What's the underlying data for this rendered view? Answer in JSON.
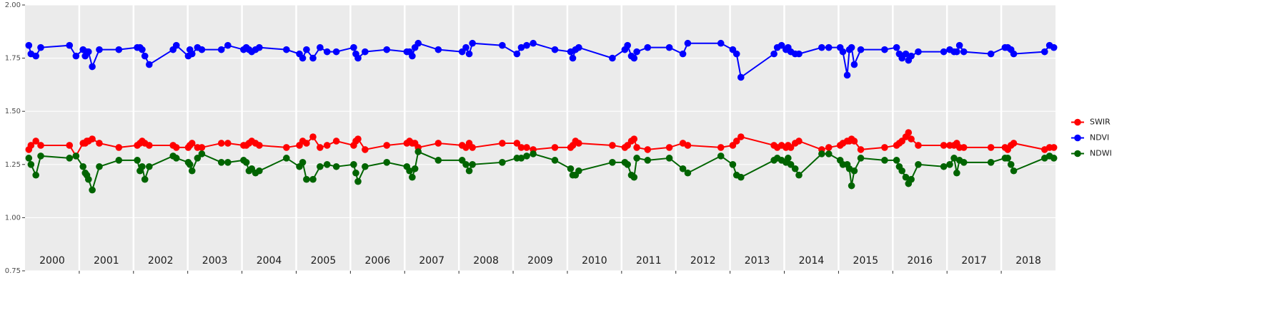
{
  "chart_data": {
    "type": "line",
    "xlim": [
      2000,
      2019
    ],
    "xticks": [
      2001,
      2002,
      2003,
      2004,
      2005,
      2006,
      2007,
      2008,
      2009,
      2010,
      2011,
      2012,
      2013,
      2014,
      2015,
      2016,
      2017,
      2018
    ],
    "year_labels": [
      2000,
      2001,
      2002,
      2003,
      2004,
      2005,
      2006,
      2007,
      2008,
      2009,
      2010,
      2011,
      2012,
      2013,
      2014,
      2015,
      2016,
      2017,
      2018
    ],
    "ylim": [
      0.75,
      2.0
    ],
    "yticks": [
      {
        "value": 0.75,
        "label": "0.75"
      },
      {
        "value": 1.0,
        "label": "1.00"
      },
      {
        "value": 1.25,
        "label": "1.25"
      },
      {
        "value": 1.5,
        "label": "1.50"
      },
      {
        "value": 1.75,
        "label": "1.75"
      },
      {
        "value": 2.0,
        "label": "2.00"
      }
    ],
    "grid": true,
    "legend": "right",
    "x": [
      2000.07,
      2000.11,
      2000.2,
      2000.29,
      2000.82,
      2000.94,
      2001.07,
      2001.11,
      2001.14,
      2001.17,
      2001.24,
      2001.37,
      2001.73,
      2002.07,
      2002.12,
      2002.16,
      2002.21,
      2002.29,
      2002.73,
      2002.79,
      2003.01,
      2003.04,
      2003.08,
      2003.18,
      2003.26,
      2003.62,
      2003.74,
      2004.03,
      2004.08,
      2004.13,
      2004.18,
      2004.25,
      2004.32,
      2004.82,
      2005.06,
      2005.12,
      2005.19,
      2005.31,
      2005.44,
      2005.57,
      2005.74,
      2006.06,
      2006.1,
      2006.14,
      2006.27,
      2006.67,
      2007.04,
      2007.09,
      2007.14,
      2007.19,
      2007.25,
      2007.62,
      2008.06,
      2008.13,
      2008.19,
      2008.25,
      2008.8,
      2009.07,
      2009.15,
      2009.25,
      2009.37,
      2009.77,
      2010.06,
      2010.1,
      2010.15,
      2010.21,
      2010.83,
      2011.06,
      2011.11,
      2011.18,
      2011.23,
      2011.28,
      2011.48,
      2011.88,
      2012.13,
      2012.22,
      2012.83,
      2013.05,
      2013.12,
      2013.2,
      2013.81,
      2013.87,
      2013.95,
      2014.03,
      2014.07,
      2014.12,
      2014.2,
      2014.27,
      2014.69,
      2014.82,
      2015.03,
      2015.08,
      2015.16,
      2015.2,
      2015.24,
      2015.29,
      2015.41,
      2015.85,
      2016.07,
      2016.12,
      2016.17,
      2016.24,
      2016.29,
      2016.34,
      2016.47,
      2016.94,
      2017.05,
      2017.13,
      2017.18,
      2017.23,
      2017.31,
      2017.81,
      2018.07,
      2018.12,
      2018.18,
      2018.23,
      2018.8,
      2018.89,
      2018.97
    ],
    "series": [
      {
        "name": "SWIR",
        "color": "#ff0000",
        "values": [
          1.32,
          1.34,
          1.36,
          1.34,
          1.34,
          1.29,
          1.35,
          1.35,
          1.36,
          1.36,
          1.37,
          1.35,
          1.33,
          1.34,
          1.35,
          1.36,
          1.35,
          1.34,
          1.34,
          1.33,
          1.33,
          1.34,
          1.35,
          1.33,
          1.33,
          1.35,
          1.35,
          1.34,
          1.34,
          1.35,
          1.36,
          1.35,
          1.34,
          1.33,
          1.34,
          1.36,
          1.35,
          1.38,
          1.33,
          1.34,
          1.36,
          1.34,
          1.36,
          1.37,
          1.32,
          1.34,
          1.35,
          1.36,
          1.35,
          1.35,
          1.33,
          1.35,
          1.34,
          1.33,
          1.35,
          1.33,
          1.35,
          1.35,
          1.33,
          1.33,
          1.32,
          1.33,
          1.33,
          1.34,
          1.36,
          1.35,
          1.34,
          1.33,
          1.34,
          1.36,
          1.37,
          1.33,
          1.32,
          1.33,
          1.35,
          1.34,
          1.33,
          1.34,
          1.36,
          1.38,
          1.34,
          1.33,
          1.34,
          1.33,
          1.34,
          1.33,
          1.35,
          1.36,
          1.32,
          1.33,
          1.34,
          1.35,
          1.36,
          1.36,
          1.37,
          1.36,
          1.32,
          1.33,
          1.34,
          1.35,
          1.36,
          1.38,
          1.4,
          1.37,
          1.34,
          1.34,
          1.34,
          1.34,
          1.35,
          1.33,
          1.33,
          1.33,
          1.33,
          1.32,
          1.34,
          1.35,
          1.32,
          1.33,
          1.33
        ]
      },
      {
        "name": "NDVI",
        "color": "#0000ff",
        "values": [
          1.81,
          1.77,
          1.76,
          1.8,
          1.81,
          1.76,
          1.79,
          1.76,
          1.78,
          1.78,
          1.71,
          1.79,
          1.79,
          1.8,
          1.8,
          1.79,
          1.76,
          1.72,
          1.79,
          1.81,
          1.76,
          1.79,
          1.77,
          1.8,
          1.79,
          1.79,
          1.81,
          1.79,
          1.8,
          1.79,
          1.78,
          1.79,
          1.8,
          1.79,
          1.77,
          1.75,
          1.79,
          1.75,
          1.8,
          1.78,
          1.78,
          1.8,
          1.77,
          1.75,
          1.78,
          1.79,
          1.78,
          1.78,
          1.76,
          1.8,
          1.82,
          1.79,
          1.78,
          1.8,
          1.77,
          1.82,
          1.81,
          1.77,
          1.8,
          1.81,
          1.82,
          1.79,
          1.78,
          1.75,
          1.79,
          1.8,
          1.75,
          1.79,
          1.81,
          1.76,
          1.75,
          1.78,
          1.8,
          1.8,
          1.77,
          1.82,
          1.82,
          1.79,
          1.77,
          1.66,
          1.77,
          1.8,
          1.81,
          1.79,
          1.8,
          1.78,
          1.77,
          1.77,
          1.8,
          1.8,
          1.8,
          1.78,
          1.67,
          1.79,
          1.8,
          1.72,
          1.79,
          1.79,
          1.8,
          1.77,
          1.75,
          1.77,
          1.74,
          1.76,
          1.78,
          1.78,
          1.79,
          1.78,
          1.78,
          1.81,
          1.78,
          1.77,
          1.8,
          1.8,
          1.79,
          1.77,
          1.78,
          1.81,
          1.8
        ]
      },
      {
        "name": "NDWI",
        "color": "#006400",
        "values": [
          1.28,
          1.25,
          1.2,
          1.29,
          1.28,
          1.29,
          1.24,
          1.21,
          1.2,
          1.18,
          1.13,
          1.24,
          1.27,
          1.27,
          1.22,
          1.24,
          1.18,
          1.24,
          1.29,
          1.28,
          1.26,
          1.25,
          1.22,
          1.28,
          1.3,
          1.26,
          1.26,
          1.27,
          1.26,
          1.22,
          1.23,
          1.21,
          1.22,
          1.28,
          1.24,
          1.26,
          1.18,
          1.18,
          1.24,
          1.25,
          1.24,
          1.25,
          1.21,
          1.17,
          1.24,
          1.26,
          1.24,
          1.22,
          1.19,
          1.23,
          1.31,
          1.27,
          1.27,
          1.25,
          1.22,
          1.25,
          1.26,
          1.28,
          1.28,
          1.29,
          1.3,
          1.27,
          1.23,
          1.2,
          1.2,
          1.22,
          1.26,
          1.26,
          1.25,
          1.2,
          1.19,
          1.28,
          1.27,
          1.28,
          1.23,
          1.21,
          1.29,
          1.25,
          1.2,
          1.19,
          1.27,
          1.28,
          1.27,
          1.26,
          1.28,
          1.25,
          1.23,
          1.2,
          1.3,
          1.3,
          1.27,
          1.25,
          1.25,
          1.23,
          1.15,
          1.22,
          1.28,
          1.27,
          1.27,
          1.24,
          1.22,
          1.19,
          1.16,
          1.18,
          1.25,
          1.24,
          1.25,
          1.28,
          1.21,
          1.27,
          1.26,
          1.26,
          1.28,
          1.28,
          1.25,
          1.22,
          1.28,
          1.29,
          1.28
        ]
      }
    ]
  }
}
